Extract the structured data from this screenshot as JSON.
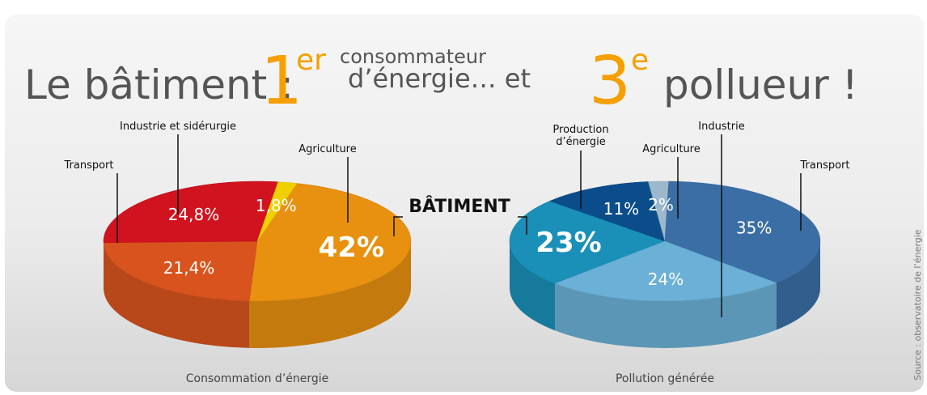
{
  "header": {
    "lead": "Le bâtiment :",
    "first_number": "1",
    "first_suffix": "er",
    "first_upper": "consommateur",
    "first_lower": "d’énergie… et",
    "second_number": "3",
    "second_suffix": "e",
    "tail": "pollueur !"
  },
  "source": "Source : observatoire de l’énergie",
  "chart_data": [
    {
      "type": "pie",
      "title": "Consommation d’énergie",
      "categories": [
        "BÂTIMENT",
        "Transport",
        "Industrie et sidérurgie",
        "Agriculture"
      ],
      "values": [
        42,
        21.4,
        24.8,
        1.8
      ],
      "value_labels": [
        "42%",
        "21,4%",
        "24,8%",
        "1,8%"
      ],
      "colors": [
        "#e8900f",
        "#d9531e",
        "#d0131f",
        "#f0d000"
      ]
    },
    {
      "type": "pie",
      "title": "Pollution générée",
      "categories": [
        null,
        "Production d’énergie",
        "Agriculture",
        "Transport",
        "Industrie"
      ],
      "values": [
        23,
        11,
        2,
        35,
        24
      ],
      "value_labels": [
        "23%",
        "11%",
        "2%",
        "35%",
        "24%"
      ],
      "colors": [
        "#1a90b8",
        "#0a4d8a",
        "#9cb8cc",
        "#3a6ea5",
        "#6bb0d6"
      ]
    }
  ]
}
